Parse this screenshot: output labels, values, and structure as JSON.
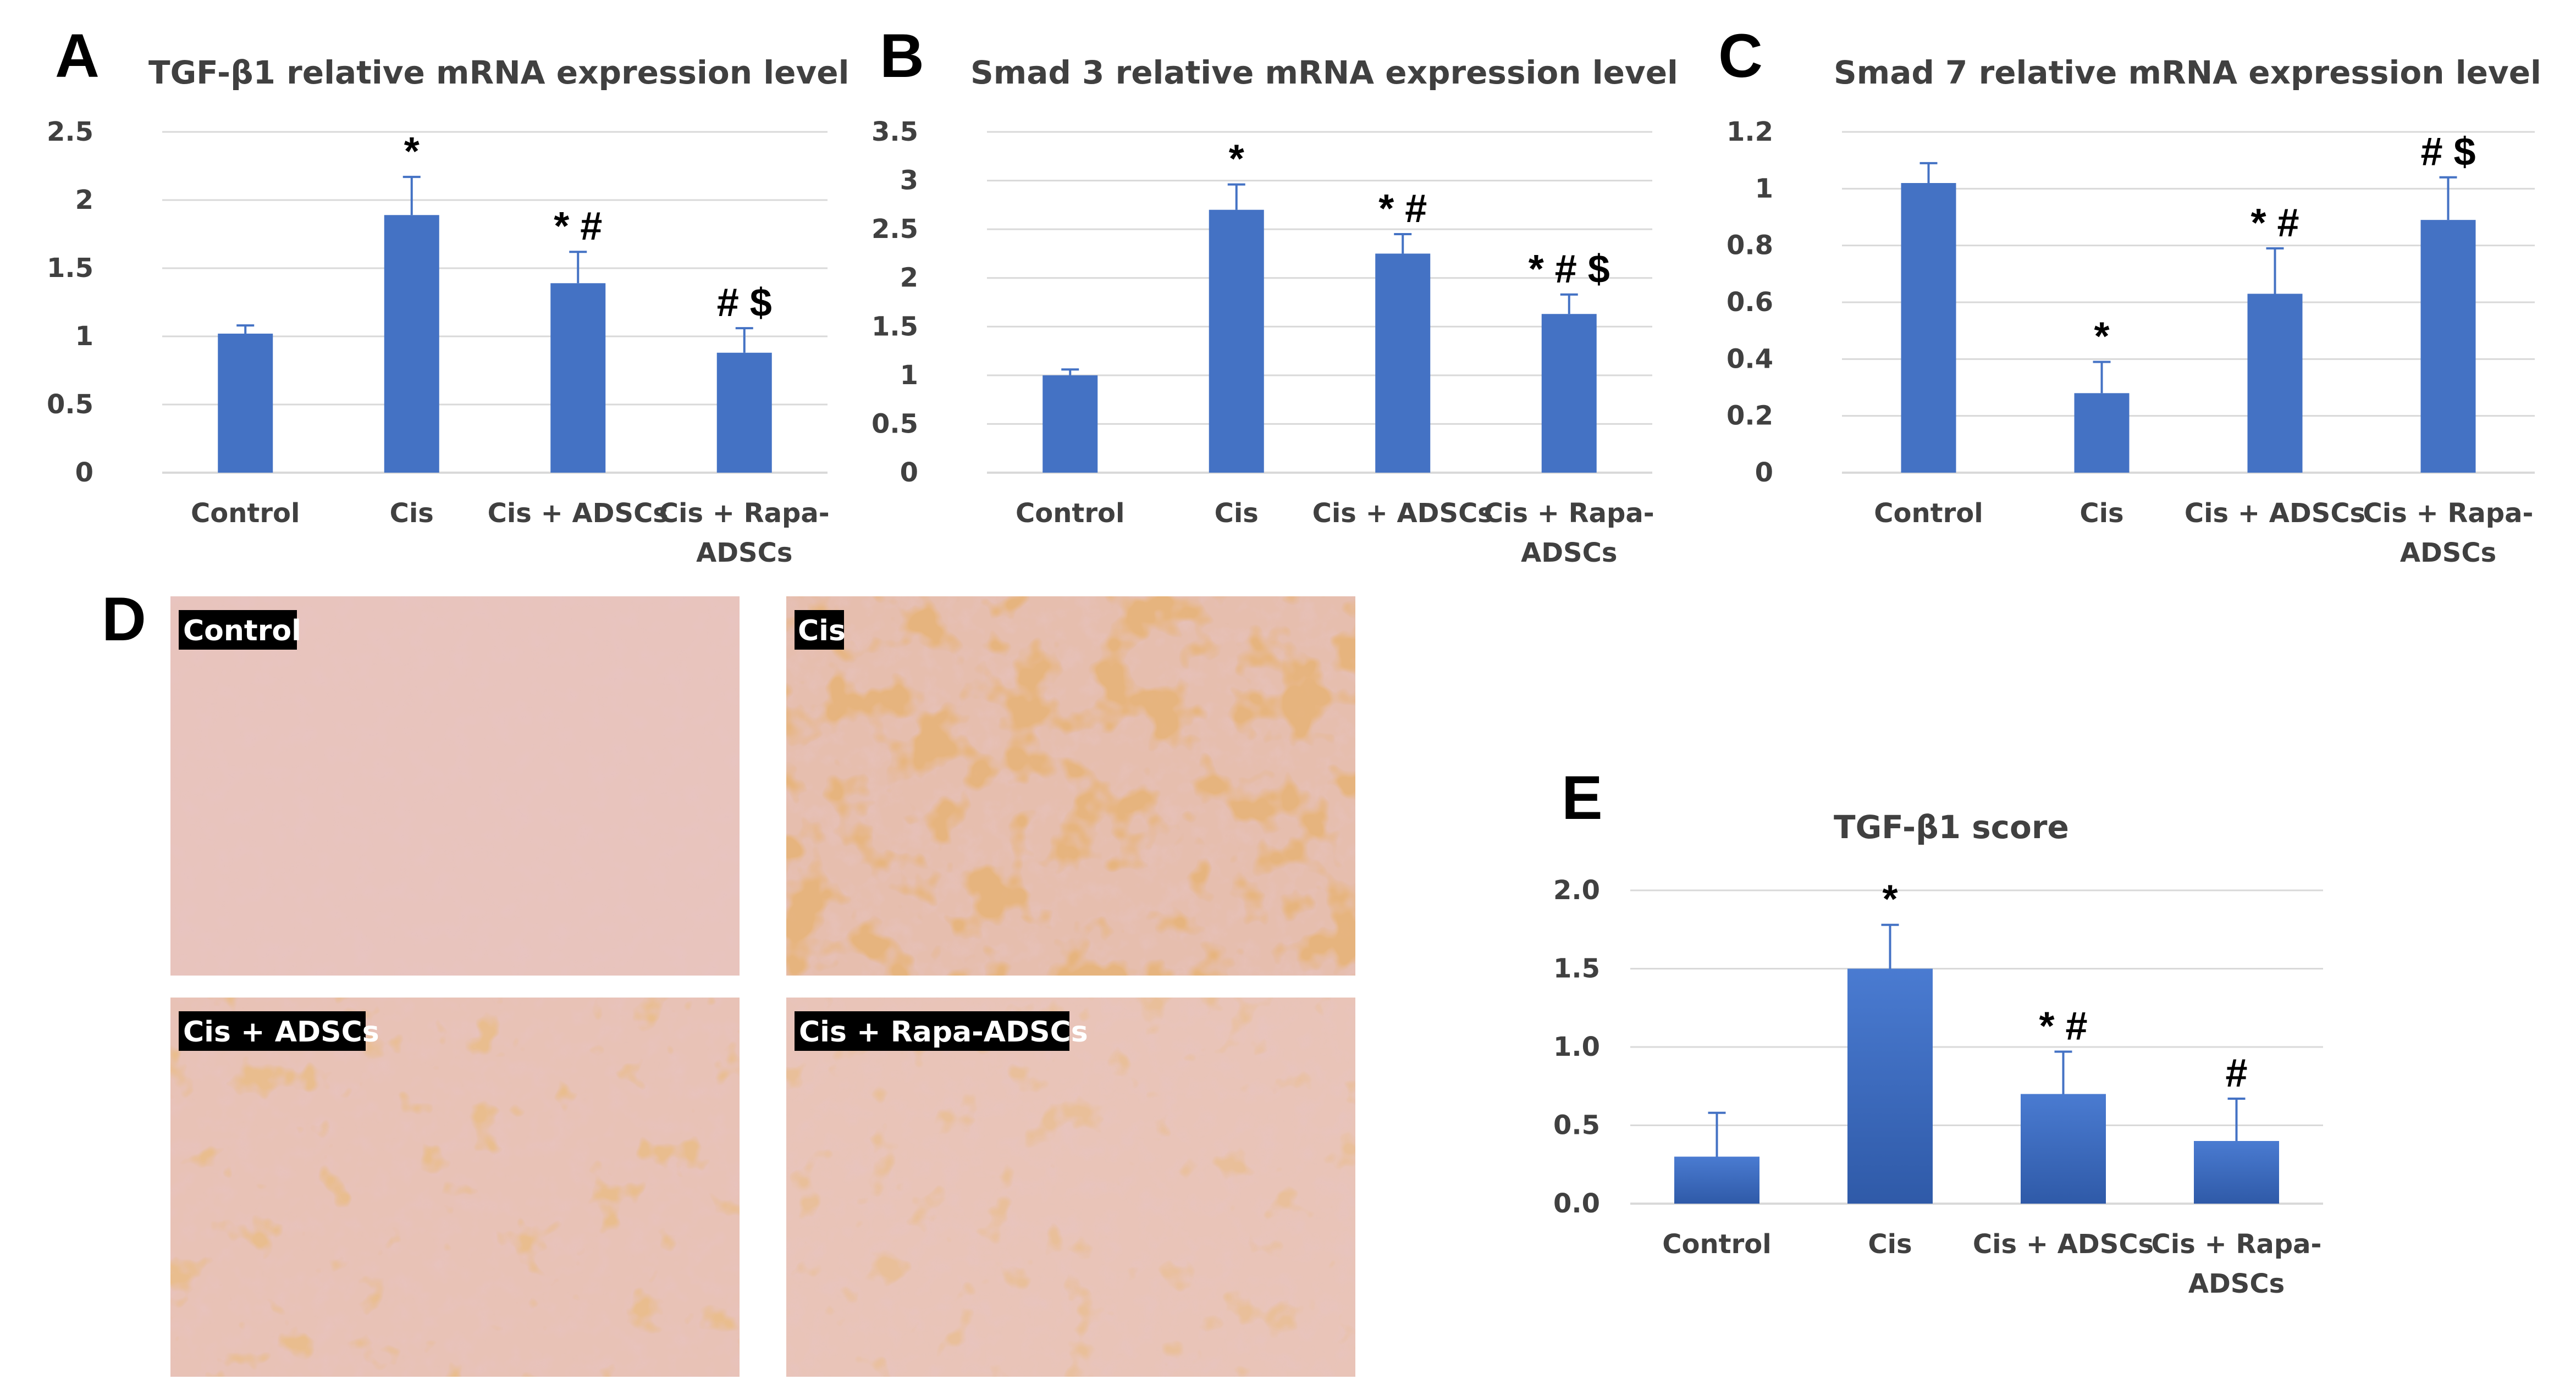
{
  "panels": {
    "a": {
      "letter": "A",
      "title": "TGF-β1 relative mRNA expression level"
    },
    "b": {
      "letter": "B",
      "title": "Smad 3 relative mRNA expression level"
    },
    "c": {
      "letter": "C",
      "title": "Smad 7 relative mRNA expression level"
    },
    "d": {
      "letter": "D"
    },
    "e": {
      "letter": "E",
      "title": "TGF-β1 score"
    }
  },
  "micrographs": [
    {
      "label": "Control"
    },
    {
      "label": "Cis"
    },
    {
      "label": "Cis + ADSCs"
    },
    {
      "label": "Cis + Rapa-ADSCs"
    }
  ],
  "colors": {
    "bar": "#4472c4",
    "bar_gradient_top": "#4a7bd1",
    "bar_gradient_bottom": "#2f5aa8",
    "text": "#404040",
    "grid": "#d9d9d9"
  },
  "chart_data": [
    {
      "id": "A",
      "type": "bar",
      "title": "TGF-β1 relative mRNA expression level",
      "categories": [
        [
          "Control"
        ],
        [
          "Cis"
        ],
        [
          "Cis + ADSCs"
        ],
        [
          "Cis + Rapa-",
          "ADSCs"
        ]
      ],
      "values": [
        1.02,
        1.89,
        1.39,
        0.88
      ],
      "errors": [
        0.06,
        0.28,
        0.23,
        0.18
      ],
      "annotations": [
        "",
        "*",
        "* #",
        "# $"
      ],
      "ylim": [
        0,
        2.5
      ],
      "yticks": [
        0,
        0.5,
        1,
        1.5,
        2,
        2.5
      ],
      "ytick_labels": [
        "0",
        "0.5",
        "1",
        "1.5",
        "2",
        "2.5"
      ],
      "xlabel": "",
      "ylabel": "",
      "grid": true,
      "legend": "none"
    },
    {
      "id": "B",
      "type": "bar",
      "title": "Smad 3 relative mRNA expression level",
      "categories": [
        [
          "Control"
        ],
        [
          "Cis"
        ],
        [
          "Cis + ADSCs"
        ],
        [
          "Cis + Rapa-",
          "ADSCs"
        ]
      ],
      "values": [
        1.0,
        2.7,
        2.25,
        1.63
      ],
      "errors": [
        0.06,
        0.26,
        0.2,
        0.2
      ],
      "annotations": [
        "",
        "*",
        "* #",
        "* # $"
      ],
      "ylim": [
        0,
        3.5
      ],
      "yticks": [
        0,
        0.5,
        1,
        1.5,
        2,
        2.5,
        3,
        3.5
      ],
      "ytick_labels": [
        "0",
        "0.5",
        "1",
        "1.5",
        "2",
        "2.5",
        "3",
        "3.5"
      ],
      "xlabel": "",
      "ylabel": "",
      "grid": true,
      "legend": "none"
    },
    {
      "id": "C",
      "type": "bar",
      "title": "Smad 7 relative mRNA expression level",
      "categories": [
        [
          "Control"
        ],
        [
          "Cis"
        ],
        [
          "Cis + ADSCs"
        ],
        [
          "Cis + Rapa-",
          "ADSCs"
        ]
      ],
      "values": [
        1.02,
        0.28,
        0.63,
        0.89
      ],
      "errors": [
        0.07,
        0.11,
        0.16,
        0.15
      ],
      "annotations": [
        "",
        "*",
        "* #",
        "# $"
      ],
      "ylim": [
        0,
        1.2
      ],
      "yticks": [
        0,
        0.2,
        0.4,
        0.6,
        0.8,
        1,
        1.2
      ],
      "ytick_labels": [
        "0",
        "0.2",
        "0.4",
        "0.6",
        "0.8",
        "1",
        "1.2"
      ],
      "xlabel": "",
      "ylabel": "",
      "grid": true,
      "legend": "none"
    },
    {
      "id": "E",
      "type": "bar",
      "title": "TGF-β1 score",
      "categories": [
        [
          "Control"
        ],
        [
          "Cis"
        ],
        [
          "Cis + ADSCs"
        ],
        [
          "Cis + Rapa-",
          "ADSCs"
        ]
      ],
      "values": [
        0.3,
        1.5,
        0.7,
        0.4
      ],
      "errors": [
        0.28,
        0.28,
        0.27,
        0.27
      ],
      "annotations": [
        "",
        "*",
        "* #",
        "#"
      ],
      "ylim": [
        0,
        2.0
      ],
      "yticks": [
        0,
        0.5,
        1,
        1.5,
        2
      ],
      "ytick_labels": [
        "0.0",
        "0.5",
        "1.0",
        "1.5",
        "2.0"
      ],
      "xlabel": "",
      "ylabel": "",
      "grid": true,
      "legend": "none"
    }
  ]
}
